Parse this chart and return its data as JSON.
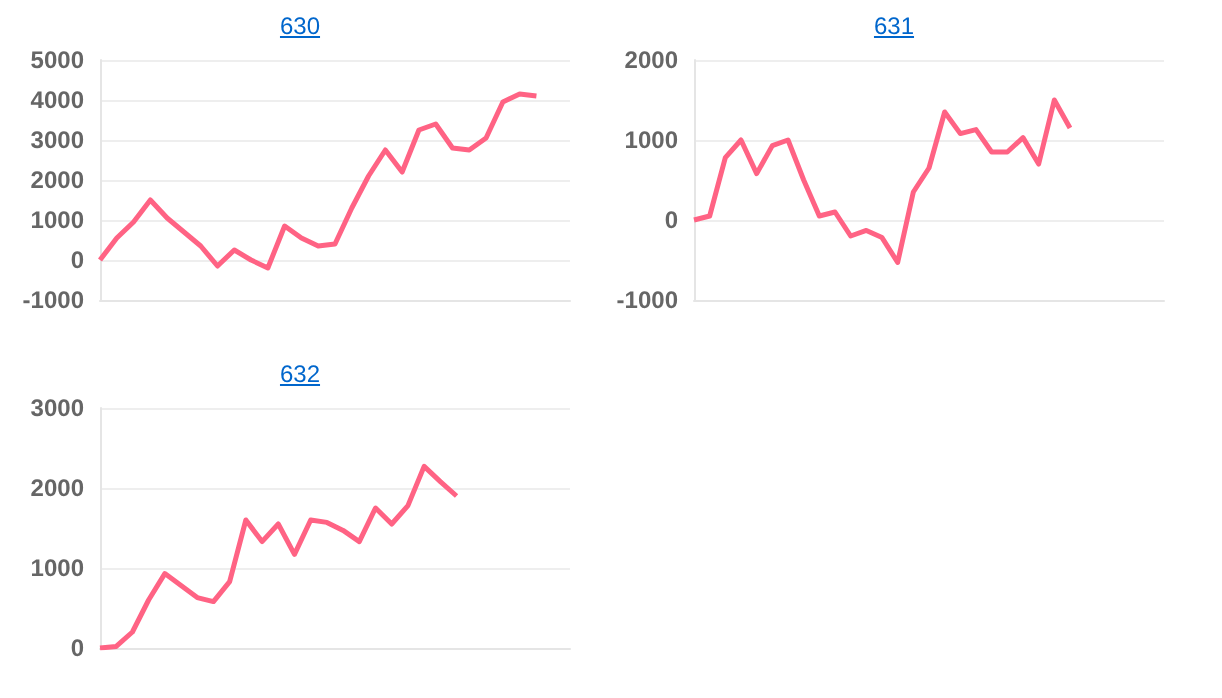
{
  "chart_data": [
    {
      "type": "line",
      "title": "630",
      "categories": [
        null,
        null,
        null,
        null,
        null,
        null,
        null,
        null,
        null,
        null,
        null,
        null,
        null,
        null,
        null,
        null,
        null,
        null,
        null,
        null,
        null,
        null,
        null,
        null,
        null,
        null,
        null,
        null,
        null
      ],
      "series": [
        {
          "color": "#ff6384",
          "values": [
            0,
            550,
            950,
            1500,
            1050,
            700,
            350,
            -150,
            250,
            0,
            -200,
            850,
            550,
            350,
            400,
            1300,
            2100,
            2750,
            2200,
            3250,
            3400,
            2800,
            2750,
            3050,
            3950,
            4150,
            4100,
            null,
            null
          ]
        }
      ],
      "ylim": [
        -1000,
        5000
      ],
      "yticks": [
        -1000,
        0,
        1000,
        2000,
        3000,
        4000,
        5000
      ],
      "grid": "y",
      "tick_labels": "y"
    },
    {
      "type": "line",
      "title": "631",
      "categories": [
        null,
        null,
        null,
        null,
        null,
        null,
        null,
        null,
        null,
        null,
        null,
        null,
        null,
        null,
        null,
        null,
        null,
        null,
        null,
        null,
        null,
        null,
        null,
        null,
        null,
        null,
        null,
        null,
        null,
        null,
        null
      ],
      "series": [
        {
          "color": "#ff6384",
          "values": [
            0,
            50,
            780,
            1000,
            580,
            930,
            1000,
            500,
            50,
            100,
            -200,
            -130,
            -220,
            -530,
            350,
            650,
            1350,
            1080,
            1130,
            850,
            850,
            1030,
            700,
            1500,
            1150,
            null,
            null,
            null,
            null,
            null,
            null
          ]
        }
      ],
      "ylim": [
        -1000,
        2000
      ],
      "yticks": [
        -1000,
        0,
        1000,
        2000
      ],
      "grid": "y",
      "tick_labels": "y"
    },
    {
      "type": "line",
      "title": "632",
      "categories": [
        null,
        null,
        null,
        null,
        null,
        null,
        null,
        null,
        null,
        null,
        null,
        null,
        null,
        null,
        null,
        null,
        null,
        null,
        null,
        null,
        null,
        null,
        null,
        null,
        null,
        null,
        null,
        null,
        null,
        null
      ],
      "series": [
        {
          "color": "#ff6384",
          "values": [
            0,
            20,
            200,
            600,
            930,
            780,
            630,
            580,
            830,
            1600,
            1330,
            1550,
            1170,
            1600,
            1570,
            1470,
            1330,
            1750,
            1550,
            1780,
            2270,
            2080,
            1900,
            null,
            null,
            null,
            null,
            null,
            null,
            null
          ]
        }
      ],
      "ylim": [
        0,
        3000
      ],
      "yticks": [
        0,
        1000,
        2000,
        3000
      ],
      "grid": "y",
      "tick_labels": "y"
    }
  ]
}
